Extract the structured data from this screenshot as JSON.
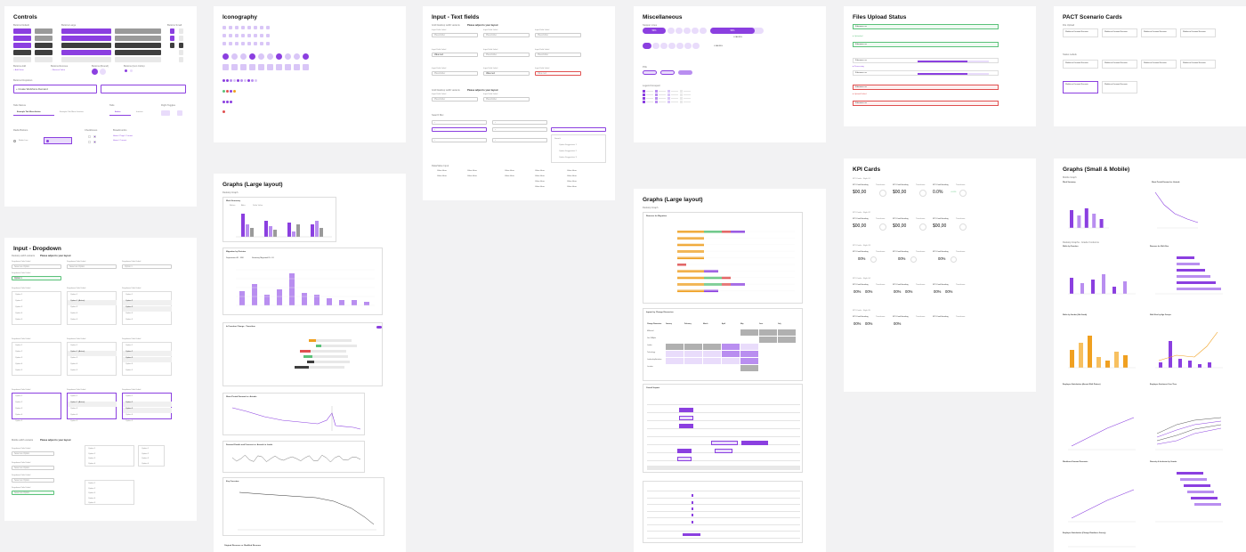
{
  "boards": {
    "controls": {
      "title": "Controls",
      "sections": [
        "Buttons Default",
        "Buttons Large",
        "Buttons Small",
        "Buttons Add",
        "Buttons Remove",
        "Buttons (Round)",
        "Buttons (Icon Circle)",
        "Buttons Dropdown",
        "Tabs Menus",
        "Tabs",
        "Flight Toggles",
        "Radio Buttons",
        "Checkboxes",
        "Breadcrumbs"
      ],
      "dropdown_button": "+ Create Workforce Demand",
      "tabs": [
        "Example Tab Menu Active",
        "Example Tab Menu Inactive"
      ],
      "toggle_tabs": [
        "Active",
        "Inactive"
      ],
      "radio": [
        "Radio Line"
      ]
    },
    "iconography": {
      "title": "Iconography"
    },
    "text_fields": {
      "title": "Input - Text fields",
      "sections": [
        "Grid Desktop width variants",
        "Please adjust to your layout",
        "Grid Desktop width variants",
        "Please adjust to your layout",
        "Search Box",
        "Data/Value Input"
      ],
      "field_label": "Input Field Label",
      "placeholder": "Placeholder",
      "value": "Value text",
      "suggestions": [
        "Search",
        "Option Suggestion 1",
        "Option Suggestion 2",
        "Option Suggestion 3"
      ],
      "table_value": "Value Here"
    },
    "misc": {
      "title": "Miscellaneous",
      "sections": [
        "Stepper Lines",
        "Pills",
        "Legend Grouped"
      ],
      "pct": [
        "50%",
        "50%"
      ],
      "loading": [
        "LOADING",
        "LOADING"
      ]
    },
    "files": {
      "title": "Files Upload Status",
      "rows": [
        "Filename.csv",
        "Filename.csv",
        "Filename.csv",
        "Filename.csv",
        "Filename.csv",
        "Filename.csv",
        "Filename.csv",
        "Filename.csv"
      ],
      "statuses": [
        "Uploaded",
        "Processing",
        "Upload Failed"
      ]
    },
    "pact": {
      "title": "PACT Scenario Cards",
      "sections": [
        "File Upload",
        "Status Labels"
      ],
      "card_title": "Workforce Demand Scenario"
    },
    "dropdown": {
      "title": "Input - Dropdown",
      "sections": [
        "Desktop width variants",
        "Please adjust to your layout",
        "Mobile width variants",
        "Please adjust to your layout"
      ],
      "label": "Dropdown Field Label",
      "placeholder": "Select an Option",
      "options": [
        "Option 1",
        "Option 2",
        "Option 3",
        "Option 4",
        "Option 5"
      ],
      "selected": "Option 1 (Active)"
    },
    "graphs_large_a": {
      "title": "Graphs (Large layout)",
      "subtitle": "Desktop Graph",
      "charts": [
        "Work Summary",
        "Migration by Division",
        "In Function Change - Transition",
        "Short Period Demand vs. Actuals",
        "Demand Details and Forecast vs. Actuals in Lands",
        "Key Overview",
        "Original Revenue vs. Modified Revenue"
      ],
      "legend": [
        "Before",
        "After",
        "Delta Value"
      ],
      "kpi_labels": [
        "Department ID - FBI",
        "Statutory Migrated ID - KI"
      ]
    },
    "graphs_large_b": {
      "title": "Graphs (Large layout)",
      "subtitle": "Desktop Graph",
      "charts": [
        "Reasons for Migration",
        "Impact by Change Dimension",
        "Overall Impact"
      ],
      "table_head": [
        "Change Dimension",
        "January",
        "February",
        "March",
        "April",
        "May",
        "June",
        "July",
        "August"
      ],
      "rows": [
        "Millennial",
        "Gen Z/Alpha",
        "Leader",
        "Technology",
        "Leadership Activities",
        "Location"
      ]
    },
    "kpi": {
      "title": "KPI Cards",
      "groups": [
        "KPI Cards - Style 01",
        "KPI Cards - Style 02",
        "KPI Cards - Style 03",
        "KPI Cards - Style 04",
        "KPI Cards - Style 05"
      ],
      "heading": "KPI Card Heading",
      "timeframe": "Timeframe",
      "values": [
        "$00,00",
        "$00,00",
        "0.0%",
        "$00,00",
        "$00,00",
        "$00,00",
        "00%",
        "00%",
        "00%",
        "00%",
        "00%",
        "00%",
        "00%",
        "00%",
        "00%",
        "00%",
        "00%",
        "00%"
      ],
      "delta": "+0.0%"
    },
    "graphs_small": {
      "title": "Graphs (Small & Mobile)",
      "subtitle": "Mobile Graph",
      "section2": "Desktop Graphs - Grade 3 columns",
      "charts": [
        "Work Summary",
        "Short Period Demand vs. Actuals",
        "Shifts by Function",
        "Reasons for Shift Size",
        "Shifts by Gender (8th Grade)",
        "Shift Size by Age Groups",
        "Employee Satisfaction (Annual Shift Pattern)",
        "Employee Sentiment Over Time",
        "Workforce Demand Forecasts",
        "Diversity & Inclusion by Gender",
        "Employee Satisfaction (Change Readiness Survey)"
      ]
    }
  },
  "colors": {
    "accent": "#8b3fe0",
    "accent_light": "#e9dcfb",
    "success": "#5bc27a",
    "error": "#e05050",
    "orange": "#f0a020"
  }
}
